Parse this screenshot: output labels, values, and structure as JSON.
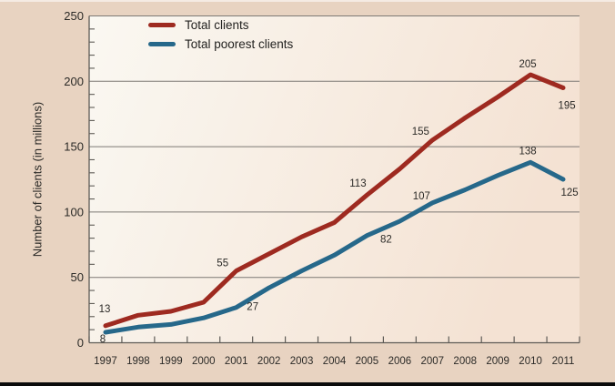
{
  "chart_data": {
    "type": "line",
    "title": "",
    "xlabel": "",
    "ylabel": "Number of clients (in millions)",
    "x": [
      "1997",
      "1998",
      "1999",
      "2000",
      "2001",
      "2002",
      "2003",
      "2004",
      "2005",
      "2006",
      "2007",
      "2008",
      "2009",
      "2010",
      "2011"
    ],
    "ylim": [
      0,
      250
    ],
    "y_major_step": 50,
    "y_minor_step": 10,
    "y_tick_labels": [
      "0",
      "50",
      "100",
      "150",
      "200",
      "250"
    ],
    "grid": true,
    "legend_position": "top-left-inside",
    "series": [
      {
        "name": "Total clients",
        "color": "#9E2A20",
        "values": [
          13,
          21,
          24,
          31,
          55,
          68,
          81,
          92,
          113,
          133,
          155,
          172,
          188,
          205,
          195
        ],
        "labeled_points": [
          {
            "year": "1997",
            "label": "13",
            "offset": [
              -1,
              -15
            ]
          },
          {
            "year": "2001",
            "label": "55",
            "offset": [
              -15,
              -5
            ]
          },
          {
            "year": "2005",
            "label": "113",
            "offset": [
              -10,
              -9
            ]
          },
          {
            "year": "2007",
            "label": "155",
            "offset": [
              -13,
              -6
            ]
          },
          {
            "year": "2010",
            "label": "205",
            "offset": [
              -3,
              -8
            ]
          },
          {
            "year": "2011",
            "label": "195",
            "offset": [
              4,
              23
            ]
          }
        ]
      },
      {
        "name": "Total poorest clients",
        "color": "#26688A",
        "values": [
          8,
          12,
          14,
          19,
          27,
          42,
          55,
          67,
          82,
          93,
          107,
          117,
          128,
          138,
          125
        ],
        "labeled_points": [
          {
            "year": "1997",
            "label": "8",
            "offset": [
              -3,
              11
            ]
          },
          {
            "year": "2001",
            "label": "27",
            "offset": [
              18,
              3
            ]
          },
          {
            "year": "2005",
            "label": "82",
            "offset": [
              21,
              8
            ]
          },
          {
            "year": "2007",
            "label": "107",
            "offset": [
              -12,
              -4
            ]
          },
          {
            "year": "2010",
            "label": "138",
            "offset": [
              -3,
              -9
            ]
          },
          {
            "year": "2011",
            "label": "125",
            "offset": [
              7,
              18
            ]
          }
        ]
      }
    ]
  },
  "colors": {
    "page_background": "#E8D3C1",
    "plot_gradient_start": "#FAF8F2",
    "plot_gradient_end": "#F4E2D3",
    "gridline": "#7D7974",
    "axis": "#5E5B56",
    "text": "#2B2A27",
    "bottom_border": "#0B0B0B"
  }
}
